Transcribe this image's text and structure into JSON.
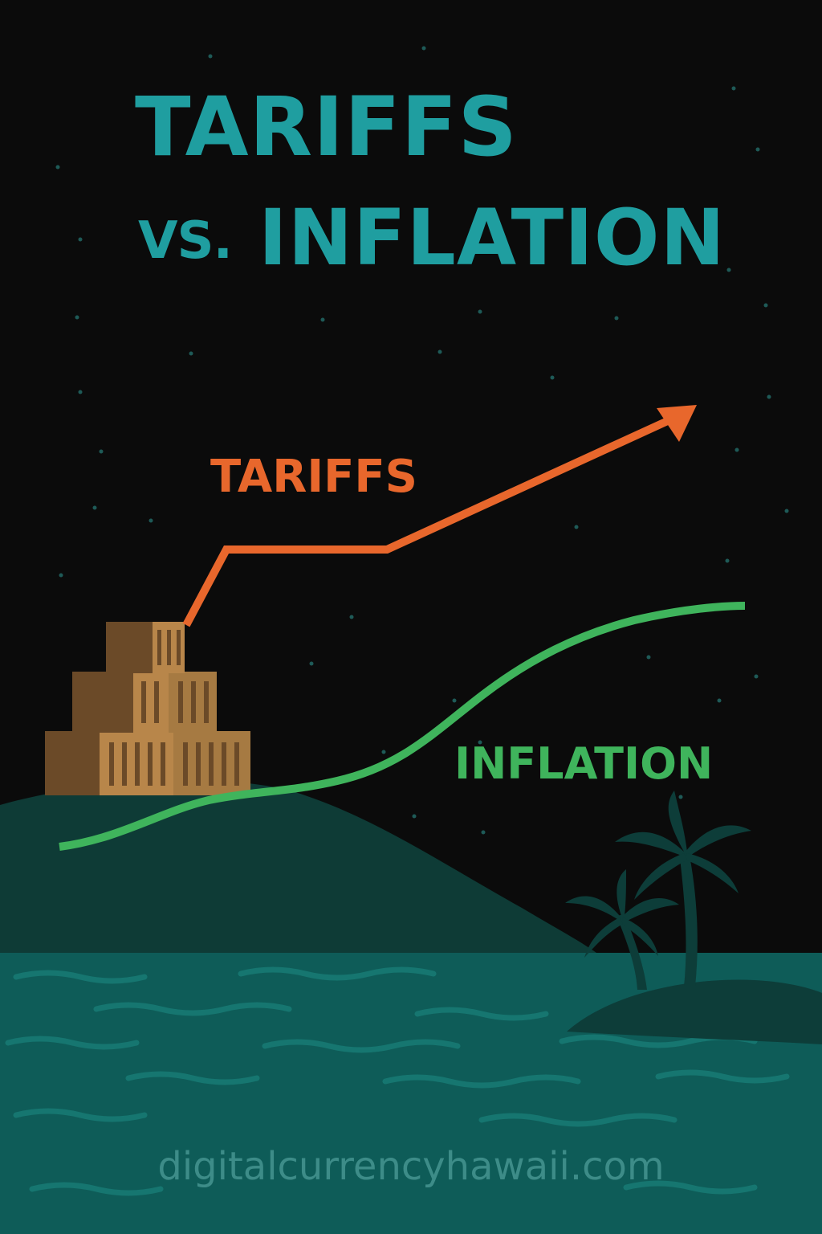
{
  "title": {
    "line1": "TARIFFS",
    "vs": "VS.",
    "line2": "INFLATION"
  },
  "labels": {
    "tariffs": "TARIFFS",
    "inflation": "INFLATION"
  },
  "footer": {
    "url": "digitalcurrencyhawaii.com"
  },
  "colors": {
    "background": "#0b0b0b",
    "title": "#1f9ea0",
    "tariffs_line": "#e8672c",
    "inflation_line": "#3fb45c",
    "hill": "#0e3b36",
    "ocean": "#0e5c58",
    "crates": "#b8864a",
    "url": "#3d8c88"
  },
  "icons": {
    "arrow": "arrow-up-right-icon",
    "crates": "shipping-crates-icon",
    "palm_trees": "palm-tree-icon"
  }
}
